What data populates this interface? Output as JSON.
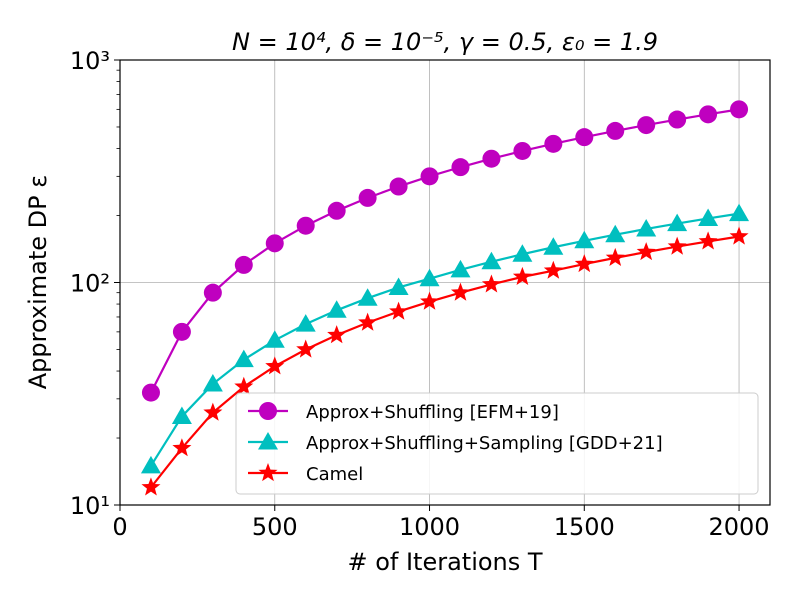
{
  "chart_data": {
    "type": "line",
    "title": "N = 10⁴, δ = 10⁻⁵, γ = 0.5, ε₀ = 1.9",
    "xlabel": "# of Iterations T",
    "ylabel": "Approximate DP ε",
    "xlim": [
      0,
      2100
    ],
    "ylim": [
      10,
      1000
    ],
    "yscale": "log",
    "grid": true,
    "legend_position": "lower-right",
    "x_ticks": [
      "0",
      "500",
      "1000",
      "1500",
      "2000"
    ],
    "y_ticks": [
      "10¹",
      "10²",
      "10³"
    ],
    "x": [
      100,
      200,
      300,
      400,
      500,
      600,
      700,
      800,
      900,
      1000,
      1100,
      1200,
      1300,
      1400,
      1500,
      1600,
      1700,
      1800,
      1900,
      2000
    ],
    "series": [
      {
        "name": "Approx+Shuffling [EFM+19]",
        "color": "#bf00bf",
        "marker": "circle",
        "values": [
          32,
          60,
          90,
          120,
          150,
          180,
          210,
          240,
          270,
          300,
          330,
          360,
          390,
          420,
          450,
          480,
          510,
          540,
          570,
          600
        ]
      },
      {
        "name": "Approx+Shuffling+Sampling [GDD+21]",
        "color": "#00bfbf",
        "marker": "triangle",
        "values": [
          15,
          25,
          35,
          45,
          55,
          65,
          75,
          85,
          95,
          104,
          114,
          124,
          134,
          144,
          154,
          164,
          174,
          184,
          194,
          204
        ]
      },
      {
        "name": "Camel",
        "color": "#ff0000",
        "marker": "star",
        "values": [
          12,
          18,
          26,
          34,
          42,
          50,
          58,
          66,
          74,
          82,
          90,
          98,
          106,
          113,
          121,
          129,
          137,
          145,
          153,
          161
        ]
      }
    ]
  }
}
